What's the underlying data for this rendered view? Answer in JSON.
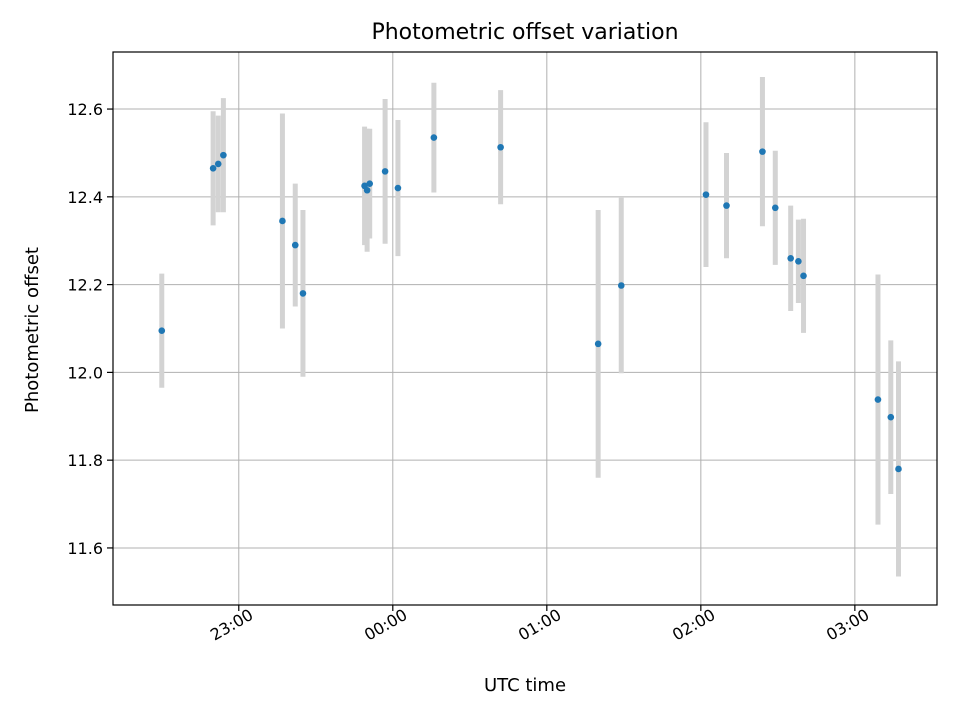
{
  "chart_data": {
    "type": "scatter",
    "title": "Photometric offset variation",
    "xlabel": "UTC time",
    "ylabel": "Photometric offset",
    "x_axis": "time",
    "x_ticks": [
      "23:00",
      "00:00",
      "01:00",
      "02:00",
      "03:00"
    ],
    "y_ticks": [
      "11.6",
      "11.8",
      "12.0",
      "12.2",
      "12.4",
      "12.6"
    ],
    "xlim": [
      "22:11",
      "03:32"
    ],
    "ylim": [
      11.47,
      12.73
    ],
    "grid": true,
    "marker_color": "#1f77b4",
    "errorbar_color": "#d3d3d3",
    "points": [
      {
        "t": "22:30",
        "y": 12.095,
        "err": 0.13
      },
      {
        "t": "22:50",
        "y": 12.465,
        "err": 0.13
      },
      {
        "t": "22:52",
        "y": 12.475,
        "err": 0.11
      },
      {
        "t": "22:54",
        "y": 12.495,
        "err": 0.13
      },
      {
        "t": "23:17",
        "y": 12.345,
        "err": 0.245
      },
      {
        "t": "23:22",
        "y": 12.29,
        "err": 0.14
      },
      {
        "t": "23:25",
        "y": 12.18,
        "err": 0.19
      },
      {
        "t": "23:49",
        "y": 12.425,
        "err": 0.135
      },
      {
        "t": "23:50",
        "y": 12.415,
        "err": 0.14
      },
      {
        "t": "23:51",
        "y": 12.43,
        "err": 0.125
      },
      {
        "t": "23:57",
        "y": 12.458,
        "err": 0.165
      },
      {
        "t": "00:02",
        "y": 12.42,
        "err": 0.155
      },
      {
        "t": "00:16",
        "y": 12.535,
        "err": 0.125
      },
      {
        "t": "00:42",
        "y": 12.513,
        "err": 0.13
      },
      {
        "t": "01:20",
        "y": 12.065,
        "err": 0.305
      },
      {
        "t": "01:29",
        "y": 12.198,
        "err": 0.2
      },
      {
        "t": "02:02",
        "y": 12.405,
        "err": 0.165
      },
      {
        "t": "02:10",
        "y": 12.38,
        "err": 0.12
      },
      {
        "t": "02:24",
        "y": 12.503,
        "err": 0.17
      },
      {
        "t": "02:29",
        "y": 12.375,
        "err": 0.13
      },
      {
        "t": "02:35",
        "y": 12.26,
        "err": 0.12
      },
      {
        "t": "02:38",
        "y": 12.253,
        "err": 0.095
      },
      {
        "t": "02:40",
        "y": 12.22,
        "err": 0.13
      },
      {
        "t": "03:09",
        "y": 11.938,
        "err": 0.285
      },
      {
        "t": "03:14",
        "y": 11.898,
        "err": 0.175
      },
      {
        "t": "03:17",
        "y": 11.78,
        "err": 0.245
      }
    ]
  }
}
